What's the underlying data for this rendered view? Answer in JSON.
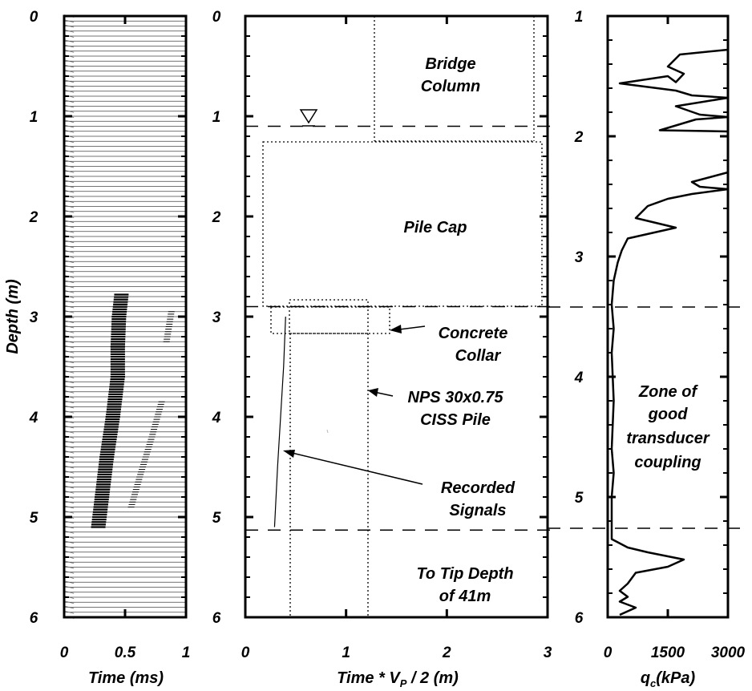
{
  "chart_data": [
    {
      "type": "scatter",
      "panel": "seismic-traces",
      "xlabel": "Time (ms)",
      "ylabel": "Depth (m)",
      "xlim": [
        0,
        1
      ],
      "ylim": [
        0,
        6
      ],
      "y_inverted": true,
      "xticks": [
        "0",
        "0.5",
        "1"
      ],
      "yticks": [
        "0",
        "1",
        "2",
        "3",
        "4",
        "5",
        "6"
      ],
      "wavetrains": [
        {
          "name": "",
          "points": [
            [
              0.47,
              2.78
            ],
            [
              0.45,
              3.0
            ],
            [
              0.44,
              3.3
            ],
            [
              0.44,
              3.6
            ],
            [
              0.4,
              4.0
            ],
            [
              0.35,
              4.4
            ],
            [
              0.31,
              4.8
            ],
            [
              0.28,
              5.1
            ]
          ]
        },
        {
          "name": "",
          "points": [
            [
              0.8,
              3.85
            ],
            [
              0.72,
              4.2
            ],
            [
              0.62,
              4.6
            ],
            [
              0.55,
              4.9
            ]
          ]
        },
        {
          "name": "",
          "points": [
            [
              0.88,
              2.95
            ],
            [
              0.84,
              3.25
            ]
          ]
        }
      ]
    },
    {
      "type": "line",
      "panel": "pile-schematic",
      "xlabel": "Time * V",
      "xlabel_sub": "P",
      "xlabel_tail": " / 2 (m)",
      "xlim": [
        0,
        3
      ],
      "ylim": [
        0,
        6
      ],
      "y_inverted": true,
      "xticks": [
        "0",
        "1",
        "2",
        "3"
      ],
      "yticks": [
        "0",
        "1",
        "2",
        "3",
        "4",
        "5",
        "6"
      ],
      "water_table_depth": 1.1,
      "horizontal_dashed_lines": [
        1.1,
        2.9,
        5.13
      ],
      "annotations": {
        "bridge_column": [
          "Bridge",
          "Column"
        ],
        "pile_cap": [
          "Pile Cap"
        ],
        "concrete_collar": [
          "Concrete",
          "Collar"
        ],
        "pile": [
          "NPS 30x0.75",
          "CISS Pile"
        ],
        "recorded_signals": [
          "Recorded",
          "Signals"
        ],
        "tip": [
          "To Tip Depth",
          "of 41m"
        ]
      },
      "recorded_signal": [
        [
          0.4,
          3.0
        ],
        [
          0.38,
          3.5
        ],
        [
          0.35,
          4.0
        ],
        [
          0.32,
          4.5
        ],
        [
          0.29,
          5.1
        ]
      ]
    },
    {
      "type": "line",
      "panel": "cpt-profile",
      "xlabel": "q",
      "xlabel_sub": "c",
      "xlabel_tail": "(kPa)",
      "xlim": [
        0,
        3000
      ],
      "ylim": [
        1,
        6
      ],
      "y_inverted": true,
      "xticks": [
        "0",
        "1500",
        "3000"
      ],
      "yticks": [
        "1",
        "2",
        "3",
        "4",
        "5",
        "6"
      ],
      "horizontal_dashed_lines": [
        3.42,
        5.26
      ],
      "annotation": [
        "Zone of",
        "good",
        "transducer",
        "coupling"
      ],
      "qc_profile": [
        [
          3000,
          1.28
        ],
        [
          1800,
          1.32
        ],
        [
          1500,
          1.42
        ],
        [
          1900,
          1.48
        ],
        [
          1700,
          1.55
        ],
        [
          1500,
          1.5
        ],
        [
          300,
          1.56
        ],
        [
          1700,
          1.62
        ],
        [
          2100,
          1.66
        ],
        [
          3000,
          1.68
        ],
        [
          1700,
          1.75
        ],
        [
          2300,
          1.82
        ],
        [
          3000,
          1.84
        ],
        [
          2200,
          1.86
        ],
        [
          1300,
          1.95
        ],
        [
          3000,
          1.96
        ],
        [
          3000,
          2.3
        ],
        [
          2100,
          2.38
        ],
        [
          2300,
          2.42
        ],
        [
          3000,
          2.44
        ],
        [
          2100,
          2.48
        ],
        [
          1500,
          2.52
        ],
        [
          1000,
          2.58
        ],
        [
          700,
          2.68
        ],
        [
          1700,
          2.76
        ],
        [
          500,
          2.85
        ],
        [
          350,
          2.95
        ],
        [
          250,
          3.05
        ],
        [
          150,
          3.2
        ],
        [
          100,
          3.4
        ],
        [
          150,
          3.6
        ],
        [
          100,
          3.8
        ],
        [
          150,
          4.2
        ],
        [
          100,
          4.6
        ],
        [
          150,
          4.8
        ],
        [
          100,
          5.0
        ],
        [
          100,
          5.35
        ],
        [
          500,
          5.42
        ],
        [
          1000,
          5.46
        ],
        [
          1900,
          5.52
        ],
        [
          1500,
          5.58
        ],
        [
          700,
          5.63
        ],
        [
          500,
          5.72
        ],
        [
          300,
          5.78
        ],
        [
          500,
          5.83
        ],
        [
          300,
          5.87
        ],
        [
          700,
          5.92
        ],
        [
          300,
          5.98
        ]
      ]
    }
  ]
}
